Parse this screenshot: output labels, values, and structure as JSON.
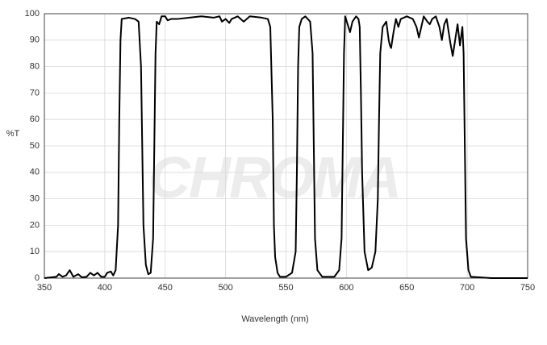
{
  "chart_data": {
    "type": "line",
    "x_label": "Wavelength (nm)",
    "y_label": "%T",
    "watermark": "CHROMA",
    "x": [
      350,
      360,
      362,
      365,
      368,
      371,
      374,
      378,
      381,
      385,
      388,
      391,
      394,
      397,
      400,
      402,
      405,
      407,
      409,
      411,
      412,
      413,
      414,
      420,
      425,
      428,
      430,
      431,
      432,
      434,
      436,
      438,
      440,
      441,
      442,
      443,
      445,
      447,
      450,
      452,
      455,
      460,
      470,
      480,
      490,
      495,
      497,
      500,
      503,
      505,
      510,
      515,
      520,
      530,
      535,
      537,
      539,
      540,
      541,
      543,
      545,
      550,
      555,
      558,
      559,
      560,
      561,
      563,
      566,
      570,
      572,
      573,
      574,
      576,
      580,
      590,
      594,
      596,
      597,
      598,
      599,
      601,
      603,
      605,
      608,
      610,
      611,
      612,
      613,
      615,
      618,
      621,
      624,
      626,
      627,
      628,
      630,
      633,
      635,
      636,
      637,
      639,
      641,
      643,
      645,
      650,
      655,
      658,
      660,
      662,
      664,
      667,
      669,
      671,
      674,
      677,
      679,
      681,
      683,
      685,
      686,
      688,
      690,
      692,
      694,
      696,
      697,
      698,
      699,
      701,
      703,
      720,
      750
    ],
    "series": [
      {
        "color": "#000000",
        "values": [
          0,
          0.5,
          1.5,
          0.5,
          1,
          3,
          0.5,
          1.5,
          0.3,
          0.5,
          2,
          1,
          2,
          0.5,
          0.5,
          2,
          2.5,
          1,
          3,
          20,
          60,
          90,
          98,
          98.5,
          98,
          97,
          80,
          50,
          20,
          5,
          1.5,
          2,
          15,
          50,
          85,
          97,
          96,
          99,
          99,
          97.5,
          98,
          98,
          98.5,
          99,
          98.5,
          99,
          97,
          98,
          96.5,
          98,
          99,
          97,
          99,
          98.5,
          98,
          95,
          60,
          20,
          8,
          2,
          0.5,
          0.5,
          2,
          10,
          40,
          80,
          95,
          98,
          99,
          97,
          85,
          50,
          15,
          3,
          0.5,
          0.5,
          3,
          15,
          50,
          85,
          99,
          96,
          93,
          97,
          99,
          98,
          95,
          70,
          40,
          10,
          3,
          4,
          10,
          30,
          60,
          85,
          95,
          97,
          90,
          88,
          87,
          93,
          98,
          95,
          98,
          99,
          98,
          95,
          91,
          95,
          99,
          97,
          96,
          98,
          99,
          95,
          90,
          96,
          98,
          92,
          89,
          84,
          90,
          96,
          88,
          95,
          85,
          50,
          15,
          3,
          0.5,
          0,
          0
        ]
      }
    ],
    "xlim": [
      350,
      750
    ],
    "xticks": [
      350,
      400,
      450,
      500,
      550,
      600,
      650,
      700,
      750
    ],
    "ylim": [
      0,
      100
    ],
    "yticks": [
      0,
      10,
      20,
      30,
      40,
      50,
      60,
      70,
      80,
      90,
      100
    ],
    "grid": true
  }
}
